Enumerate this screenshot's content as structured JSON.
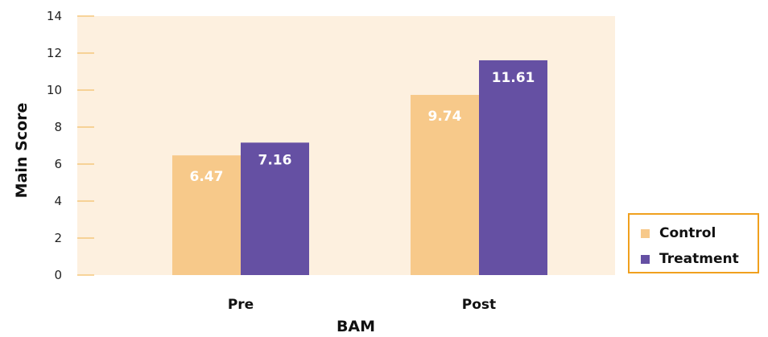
{
  "chart_data": {
    "type": "bar",
    "categories": [
      "Pre",
      "Post"
    ],
    "series": [
      {
        "name": "Control",
        "values": [
          6.47,
          9.74
        ],
        "labels": [
          "6.47",
          "9.74"
        ],
        "color": "#f7c98a"
      },
      {
        "name": "Treatment",
        "values": [
          7.16,
          11.61
        ],
        "labels": [
          "7.16",
          "11.61"
        ],
        "color": "#6550a3"
      }
    ],
    "xlabel": "BAM",
    "ylabel": "Main Score",
    "ylim": [
      0,
      14
    ],
    "yticks": [
      "0",
      "2",
      "4",
      "6",
      "8",
      "10",
      "12",
      "14"
    ],
    "plot_background": "#fdf0df",
    "tick_color": "#f5c77e",
    "legend_border": "#f0a01e",
    "legend_position": "bottom-right",
    "grid": false
  }
}
